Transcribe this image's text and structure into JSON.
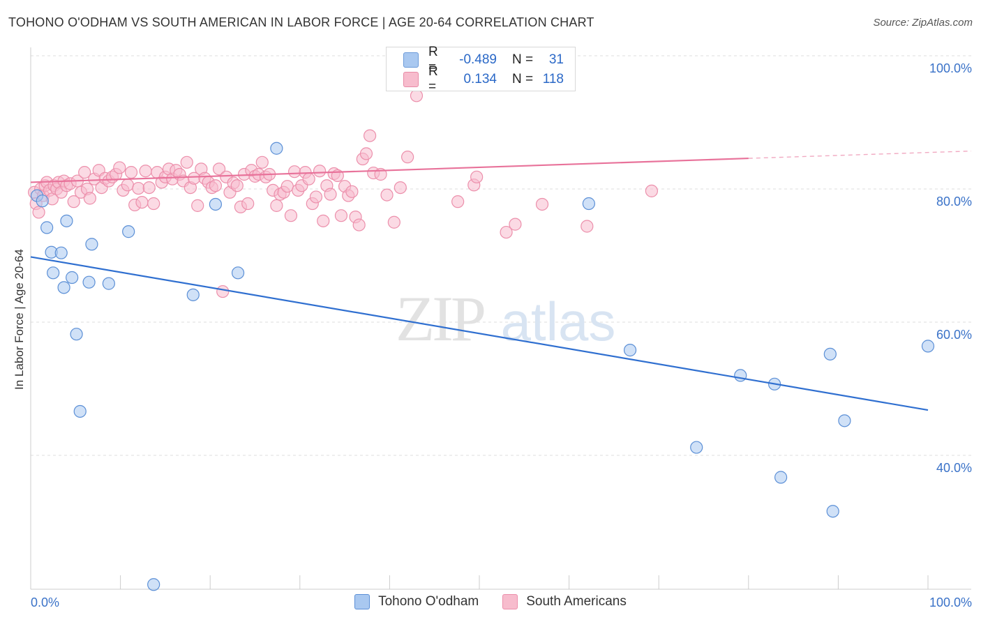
{
  "title": "TOHONO O'ODHAM VS SOUTH AMERICAN IN LABOR FORCE | AGE 20-64 CORRELATION CHART",
  "source": "Source: ZipAtlas.com",
  "watermark": {
    "zip": "ZIP",
    "atlas": "atlas"
  },
  "legend_top": {
    "rows": [
      {
        "r_label": "R =",
        "r_value": "-0.489",
        "n_label": "N =",
        "n_value": "31",
        "color": "#a9c8f0",
        "stroke": "#6b9ad9"
      },
      {
        "r_label": "R =",
        "r_value": "0.134",
        "n_label": "N =",
        "n_value": "118",
        "color": "#f7bccd",
        "stroke": "#e88aa6"
      }
    ]
  },
  "chart_data": {
    "type": "scatter",
    "title": "TOHONO O'ODHAM VS SOUTH AMERICAN IN LABOR FORCE | AGE 20-64 CORRELATION CHART",
    "xlabel": "",
    "ylabel": "In Labor Force | Age 20-64",
    "xlim": [
      0,
      1
    ],
    "ylim": [
      0.2,
      1.02
    ],
    "x_tick_labels": [
      "0.0%",
      "100.0%"
    ],
    "y_ticks": [
      {
        "value": 1.0,
        "label": "100.0%"
      },
      {
        "value": 0.8,
        "label": "80.0%"
      },
      {
        "value": 0.6,
        "label": "60.0%"
      },
      {
        "value": 0.4,
        "label": "40.0%"
      }
    ],
    "grid": true,
    "legend_placement": "bottom",
    "series": [
      {
        "name": "Tohono O'odham",
        "color": "#a9c8f0",
        "stroke": "#5b8fd6",
        "line_color": "#2f6fd0",
        "trend": {
          "x0": 0.0,
          "y0": 0.698,
          "x1": 1.0,
          "y1": 0.468
        },
        "x": [
          0.007,
          0.013,
          0.018,
          0.023,
          0.025,
          0.034,
          0.037,
          0.04,
          0.046,
          0.051,
          0.055,
          0.065,
          0.068,
          0.087,
          0.109,
          0.137,
          0.181,
          0.206,
          0.231,
          0.274,
          0.476,
          0.622,
          0.668,
          0.742,
          0.791,
          0.829,
          0.836,
          0.891,
          0.894,
          0.907,
          1.0
        ],
        "y": [
          0.79,
          0.782,
          0.742,
          0.705,
          0.674,
          0.704,
          0.652,
          0.752,
          0.667,
          0.582,
          0.466,
          0.66,
          0.717,
          0.658,
          0.736,
          0.206,
          0.641,
          0.777,
          0.674,
          0.861,
          0.997,
          0.778,
          0.558,
          0.412,
          0.52,
          0.507,
          0.367,
          0.552,
          0.316,
          0.452,
          0.564
        ]
      },
      {
        "name": "South Americans",
        "color": "#f7bccd",
        "stroke": "#ec8fab",
        "line_color": "#e8729a",
        "trend": {
          "x0": 0.0,
          "y0": 0.81,
          "x1": 0.8,
          "y1": 0.846
        },
        "trend_dashed": {
          "x0": 0.8,
          "y0": 0.846,
          "x1": 1.05,
          "y1": 0.857
        },
        "x": [
          0.004,
          0.006,
          0.009,
          0.011,
          0.014,
          0.016,
          0.018,
          0.021,
          0.024,
          0.026,
          0.029,
          0.031,
          0.034,
          0.037,
          0.04,
          0.044,
          0.048,
          0.052,
          0.056,
          0.06,
          0.063,
          0.066,
          0.071,
          0.076,
          0.079,
          0.083,
          0.087,
          0.091,
          0.095,
          0.099,
          0.103,
          0.108,
          0.112,
          0.116,
          0.12,
          0.124,
          0.128,
          0.132,
          0.137,
          0.141,
          0.146,
          0.15,
          0.154,
          0.158,
          0.162,
          0.166,
          0.17,
          0.174,
          0.178,
          0.182,
          0.186,
          0.19,
          0.194,
          0.198,
          0.202,
          0.206,
          0.21,
          0.214,
          0.218,
          0.222,
          0.226,
          0.23,
          0.234,
          0.238,
          0.242,
          0.246,
          0.25,
          0.254,
          0.258,
          0.262,
          0.266,
          0.27,
          0.274,
          0.278,
          0.282,
          0.286,
          0.29,
          0.294,
          0.298,
          0.302,
          0.306,
          0.31,
          0.314,
          0.318,
          0.322,
          0.326,
          0.33,
          0.334,
          0.338,
          0.342,
          0.346,
          0.35,
          0.354,
          0.358,
          0.362,
          0.366,
          0.37,
          0.374,
          0.378,
          0.382,
          0.39,
          0.397,
          0.405,
          0.412,
          0.42,
          0.43,
          0.441,
          0.452,
          0.462,
          0.476,
          0.494,
          0.497,
          0.507,
          0.53,
          0.54,
          0.57,
          0.62,
          0.692
        ],
        "y": [
          0.795,
          0.778,
          0.765,
          0.8,
          0.79,
          0.805,
          0.81,
          0.798,
          0.785,
          0.805,
          0.8,
          0.81,
          0.795,
          0.812,
          0.805,
          0.808,
          0.781,
          0.812,
          0.795,
          0.825,
          0.8,
          0.786,
          0.815,
          0.828,
          0.802,
          0.816,
          0.812,
          0.818,
          0.822,
          0.832,
          0.798,
          0.806,
          0.825,
          0.776,
          0.801,
          0.78,
          0.827,
          0.802,
          0.778,
          0.825,
          0.81,
          0.818,
          0.83,
          0.815,
          0.828,
          0.822,
          0.812,
          0.84,
          0.802,
          0.816,
          0.775,
          0.83,
          0.816,
          0.81,
          0.802,
          0.805,
          0.83,
          0.646,
          0.818,
          0.795,
          0.809,
          0.805,
          0.773,
          0.822,
          0.778,
          0.828,
          0.819,
          0.822,
          0.84,
          0.818,
          0.822,
          0.798,
          0.775,
          0.792,
          0.795,
          0.804,
          0.76,
          0.826,
          0.798,
          0.805,
          0.825,
          0.815,
          0.778,
          0.788,
          0.827,
          0.752,
          0.805,
          0.792,
          0.823,
          0.82,
          0.76,
          0.804,
          0.79,
          0.796,
          0.758,
          0.746,
          0.845,
          0.853,
          0.88,
          0.824,
          0.822,
          0.791,
          0.75,
          0.802,
          0.848,
          0.94,
          1.0,
          1.0,
          0.998,
          0.781,
          0.806,
          0.818,
          0.973,
          0.735,
          0.747,
          0.777,
          0.744,
          0.797
        ]
      }
    ]
  }
}
